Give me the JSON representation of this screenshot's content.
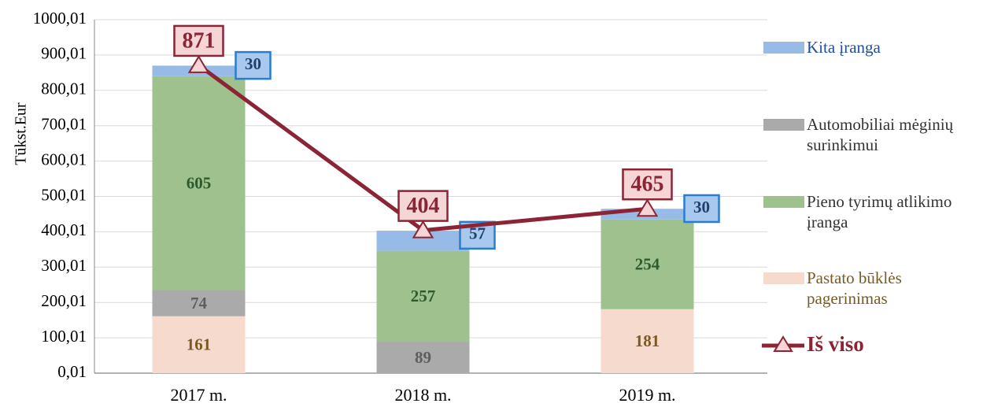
{
  "chart_data": {
    "type": "bar",
    "stacked": true,
    "y_label": "Tūkst.Eur",
    "categories": [
      "2017 m.",
      "2018 m.",
      "2019 m."
    ],
    "series": [
      {
        "name": "Pastato būklės pagerinimas",
        "color": "#f6dacd",
        "label_color": "#7a5a22",
        "values": [
          161,
          null,
          181
        ]
      },
      {
        "name": "Automobiliai mėginių surinkimui",
        "color": "#aaaaaa",
        "label_color": "#5e5e5e",
        "values": [
          74,
          89,
          null
        ]
      },
      {
        "name": "Pieno tyrimų atlikimo įranga",
        "color": "#9ec18d",
        "label_color": "#2e5a2e",
        "values": [
          605,
          257,
          254
        ]
      },
      {
        "name": "Kita įranga",
        "color": "#97bbe6",
        "label_color": "#1f3f6e",
        "values": [
          30,
          57,
          30
        ]
      },
      {
        "name": "Iš viso",
        "type": "line",
        "color": "#8b2535",
        "values": [
          871,
          404,
          465
        ]
      }
    ],
    "ylim": [
      0.01,
      1000.01
    ],
    "yticks": [
      {
        "value": 0.01,
        "label": "0,01"
      },
      {
        "value": 100.01,
        "label": "100,01"
      },
      {
        "value": 200.01,
        "label": "200,01"
      },
      {
        "value": 300.01,
        "label": "300,01"
      },
      {
        "value": 400.01,
        "label": "400,01"
      },
      {
        "value": 500.01,
        "label": "500,01"
      },
      {
        "value": 600.01,
        "label": "600,01"
      },
      {
        "value": 700.01,
        "label": "700,01"
      },
      {
        "value": 800.01,
        "label": "800,01"
      },
      {
        "value": 900.01,
        "label": "900,01"
      },
      {
        "value": 1000.01,
        "label": "1000,01"
      }
    ],
    "grid": true
  }
}
